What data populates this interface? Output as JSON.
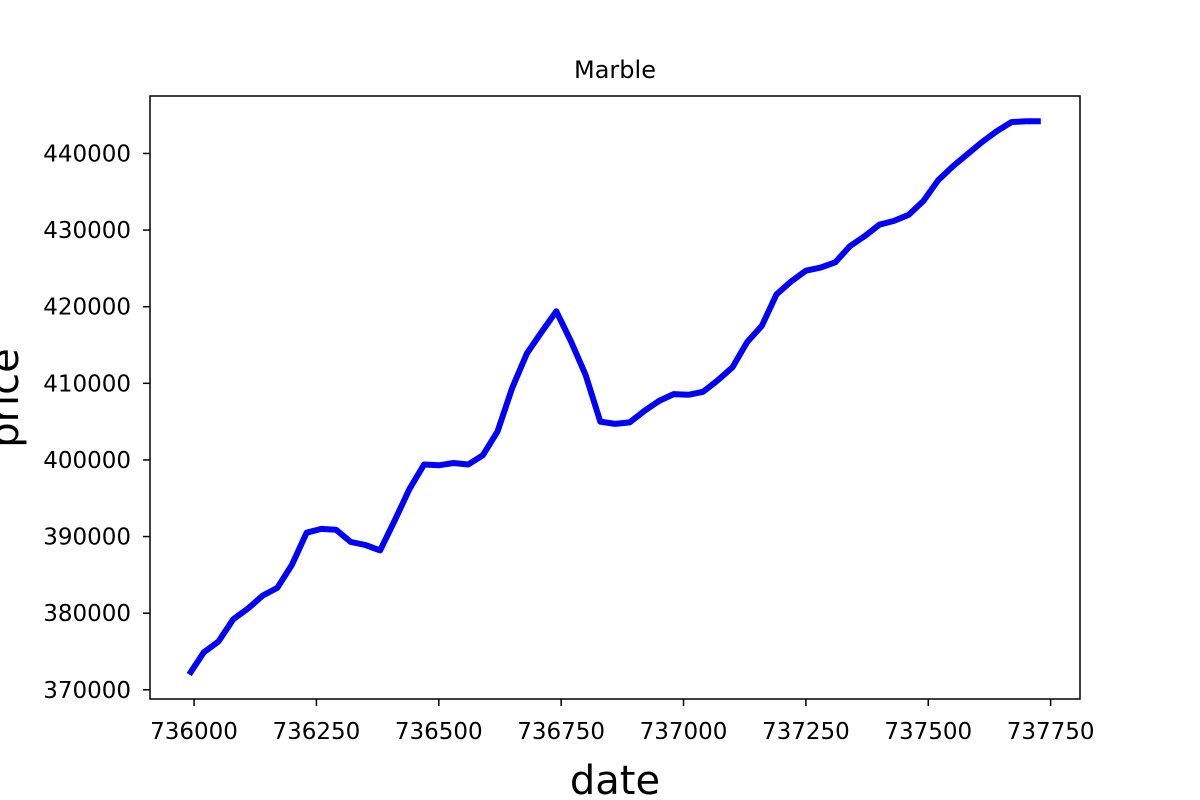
{
  "chart_data": {
    "type": "line",
    "title": "Marble",
    "xlabel": "date",
    "ylabel": "price",
    "xlim": [
      735910,
      737810
    ],
    "ylim": [
      368800,
      447500
    ],
    "xticks": [
      736000,
      736250,
      736500,
      736750,
      737000,
      737250,
      737500,
      737750
    ],
    "yticks": [
      370000,
      380000,
      390000,
      400000,
      410000,
      420000,
      430000,
      440000
    ],
    "xtick_labels": [
      "736000",
      "736250",
      "736500",
      "736750",
      "737000",
      "737250",
      "737500",
      "737750"
    ],
    "ytick_labels": [
      "370000",
      "380000",
      "390000",
      "400000",
      "410000",
      "420000",
      "430000",
      "440000"
    ],
    "grid": false,
    "series": [
      {
        "color": "#0000ff",
        "x": [
          735990,
          736020,
          736050,
          736080,
          736110,
          736140,
          736170,
          736200,
          736230,
          736260,
          736290,
          736320,
          736350,
          736380,
          736410,
          736440,
          736470,
          736500,
          736530,
          736560,
          736590,
          736620,
          736650,
          736680,
          736710,
          736740,
          736770,
          736800,
          736830,
          736860,
          736890,
          736920,
          736950,
          736980,
          737010,
          737040,
          737070,
          737100,
          737130,
          737160,
          737190,
          737220,
          737250,
          737280,
          737310,
          737340,
          737370,
          737400,
          737430,
          737460,
          737490,
          737520,
          737550,
          737580,
          737610,
          737640,
          737670,
          737700,
          737730
        ],
        "y": [
          372000,
          374900,
          376300,
          379200,
          380600,
          382300,
          383300,
          386300,
          390500,
          391000,
          390900,
          389300,
          388900,
          388200,
          392100,
          396200,
          399400,
          399300,
          399600,
          399400,
          400600,
          403700,
          409400,
          413900,
          416700,
          419400,
          415500,
          411100,
          405000,
          404700,
          404900,
          406400,
          407700,
          408600,
          408500,
          408900,
          410400,
          412100,
          415400,
          417500,
          421600,
          423300,
          424700,
          425100,
          425800,
          427900,
          429200,
          430700,
          431200,
          432000,
          433800,
          436500,
          438300,
          439900,
          441500,
          442900,
          444100,
          444200,
          444200
        ]
      }
    ]
  }
}
